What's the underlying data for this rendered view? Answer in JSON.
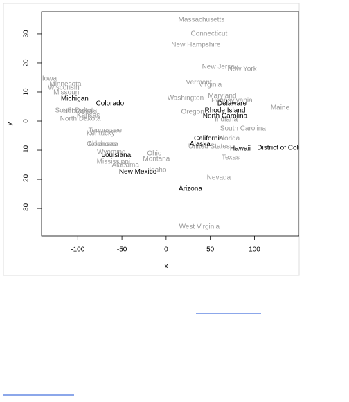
{
  "chart_data": {
    "type": "scatter",
    "xlabel": "x",
    "ylabel": "y",
    "xlim": [
      -141,
      150.6
    ],
    "ylim": [
      -39.5,
      37.6
    ],
    "xticks": [
      -100,
      -50,
      0,
      50,
      100
    ],
    "yticks": [
      -30,
      -20,
      -10,
      0,
      10,
      20,
      30
    ],
    "series": [
      {
        "color": "#9a9a9a",
        "labels": [
          "Massachusetts",
          "Connecticut",
          "New Hampshire",
          "New Jersey",
          "New York",
          "Iowa",
          "Minnesota",
          "Wisconsin",
          "Missouri",
          "Vermont",
          "Virginia",
          "Washington",
          "Maryland",
          "Pennsylvania",
          "Maine",
          "Oregon",
          "Indiana",
          "South Dakota",
          "Nebraska",
          "Kansas",
          "North Dakota",
          "South Carolina",
          "Tennessee",
          "Kentucky",
          "Florida",
          "United States",
          "Oklahoma",
          "Arkansas",
          "Wyoming",
          "Ohio",
          "Montana",
          "Mississippi",
          "Alabama",
          "Idaho",
          "Texas",
          "Nevada",
          "West Virginia"
        ],
        "x": [
          40,
          48.6,
          33.7,
          61,
          86,
          -132,
          -114,
          -116,
          -113,
          37,
          50,
          22,
          63.5,
          74.5,
          129,
          30,
          68,
          -102,
          -100,
          -88,
          -97,
          87,
          -69,
          -74,
          71.4,
          48.6,
          -72,
          -72,
          -62,
          -13.3,
          -11,
          -59.6,
          -46,
          -9.4,
          73,
          59.6,
          37.6
        ],
        "values": [
          34.8,
          30,
          26.2,
          18.6,
          17.9,
          14.5,
          12.6,
          11.4,
          9.8,
          13.3,
          12.4,
          7.9,
          8.6,
          7.1,
          4.5,
          3.1,
          0.5,
          3.6,
          3.4,
          1.9,
          0.7,
          -2.6,
          -3.3,
          -4.3,
          -6,
          -8.8,
          -7.9,
          -7.9,
          -10.7,
          -11.2,
          -13.1,
          -14,
          -15.2,
          -16.9,
          -12.6,
          -19.5,
          -36.4
        ]
      },
      {
        "color": "#000000",
        "labels": [
          "Michigan",
          "Colorado",
          "Delaware",
          "Rhode Island",
          "North Carolina",
          "California",
          "Alaska",
          "Hawaii",
          "District of Columbia",
          "Louisiana",
          "New Mexico",
          "Arizona"
        ],
        "x": [
          -103.5,
          -63.5,
          74.5,
          66.7,
          66.7,
          48,
          38.4,
          84,
          137,
          -56.5,
          -32,
          27.5
        ],
        "values": [
          7.6,
          6,
          6,
          3.6,
          1.7,
          -6,
          -7.9,
          -9.5,
          -9.3,
          -11.7,
          -17.4,
          -23.3
        ]
      }
    ]
  }
}
